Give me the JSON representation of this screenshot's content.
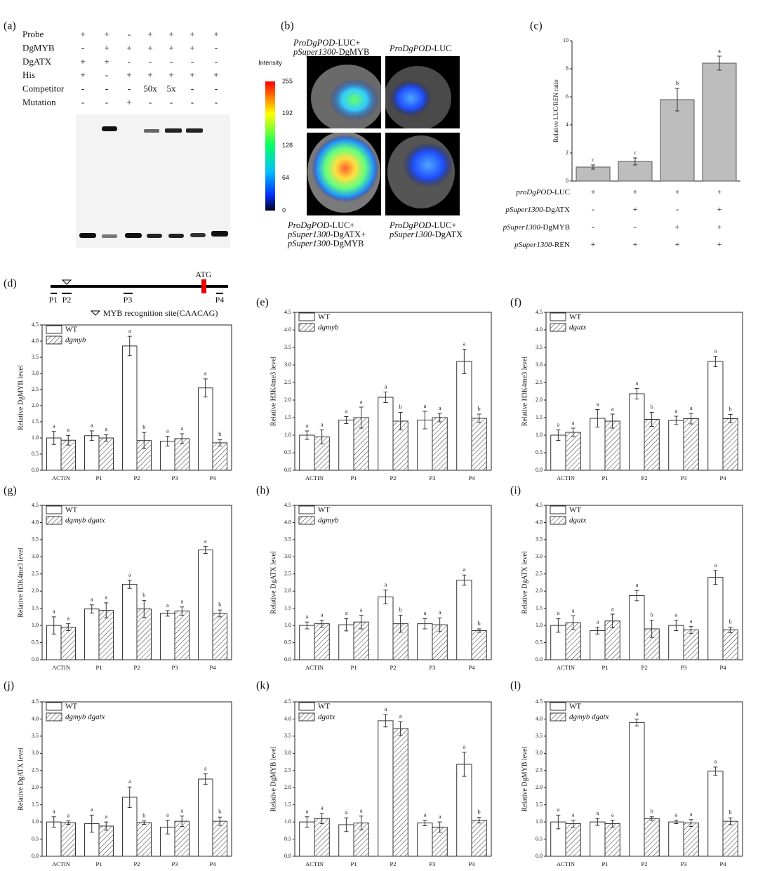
{
  "panel_a": {
    "label": "(a)",
    "rows": [
      {
        "name": "Probe",
        "lanes": [
          "+",
          "+",
          "-",
          "+",
          "+",
          "+",
          "+"
        ]
      },
      {
        "name": "DgMYB",
        "lanes": [
          "-",
          "+",
          "+",
          "+",
          "+",
          "+",
          "-"
        ]
      },
      {
        "name": "DgATX",
        "lanes": [
          "+",
          "+",
          "-",
          "-",
          "-",
          "-",
          "-"
        ]
      },
      {
        "name": "His",
        "lanes": [
          "+",
          "-",
          "+",
          "+",
          "+",
          "+",
          "+"
        ]
      },
      {
        "name": "Competitor",
        "lanes": [
          "-",
          "-",
          "-",
          "50x",
          "5x",
          "-",
          "-"
        ]
      },
      {
        "name": "Mutation",
        "lanes": [
          "-",
          "-",
          "+",
          "-",
          "-",
          "-",
          "-"
        ]
      }
    ]
  },
  "panel_b": {
    "label": "(b)",
    "captions": [
      [
        [
          "ProDgPOD",
          "-LUC+"
        ],
        [
          "pSuper1300",
          "-DgMYB"
        ]
      ],
      [
        [
          "ProDgPOD",
          "-LUC"
        ]
      ],
      [
        [
          "ProDgPOD",
          "-LUC+"
        ],
        [
          "pSuper1300",
          "-DgATX+"
        ],
        [
          "pSuper1300",
          "-DgMYB"
        ]
      ],
      [
        [
          "ProDgPOD",
          "-LUC+"
        ],
        [
          "pSuper1300",
          "-DgATX"
        ]
      ]
    ],
    "colorbar_title": "Intensity",
    "colorbar_lim": [
      0,
      255
    ],
    "colorbar_ticks": [
      255,
      192,
      128,
      64,
      0
    ]
  },
  "panel_d_map": {
    "start": "ATG",
    "primers": [
      "P1",
      "P2",
      "P3",
      "P4"
    ],
    "legend": "MYB recognition site(CAACAG)"
  },
  "chart_data": [
    {
      "type": "bar",
      "panel_label": "(c)",
      "y_label": "Relative LUC/REN ratio",
      "color": "#bdbdbd",
      "values": [
        1.0,
        1.4,
        5.8,
        8.4
      ],
      "errors": [
        0.15,
        0.25,
        0.8,
        0.5
      ],
      "letters": [
        "c",
        "c",
        "b",
        "a"
      ],
      "ylim": [
        0,
        10
      ],
      "yticks": [
        0,
        2,
        4,
        6,
        8,
        10
      ],
      "treatments": [
        {
          "label_parts": [
            "proDgPOD",
            "-LUC"
          ],
          "signs": [
            "+",
            "+",
            "+",
            "+"
          ]
        },
        {
          "label_parts": [
            "pSuper1300",
            "-DgATX"
          ],
          "signs": [
            "-",
            "+",
            "-",
            "+"
          ]
        },
        {
          "label_parts": [
            "pSuper1300",
            "-DgMYB"
          ],
          "signs": [
            "-",
            "-",
            "+",
            "+"
          ]
        },
        {
          "label_parts": [
            "pSuper1300",
            "-REN"
          ],
          "signs": [
            "+",
            "+",
            "+",
            "+"
          ]
        }
      ]
    },
    {
      "type": "grouped_bar",
      "panel_label": "(d)",
      "y_label": "Relative DgMYB level",
      "categories": [
        "ACTIN",
        "P1",
        "P2",
        "P3",
        "P4"
      ],
      "ylim": [
        0,
        4.5
      ],
      "yticks": [
        {
          "value": 0,
          "label": "0.0"
        },
        0.5,
        {
          "value": 1,
          "label": "1.0"
        },
        1.5,
        {
          "value": 2,
          "label": "2.0"
        },
        2.5,
        {
          "value": 3,
          "label": "3.0"
        },
        3.5,
        {
          "value": 4,
          "label": "4.0"
        },
        4.5
      ],
      "series": [
        {
          "name": "WT",
          "color": "#ffffff",
          "values": [
            1.0,
            1.07,
            3.85,
            0.9,
            2.55
          ],
          "errors": [
            0.2,
            0.15,
            0.3,
            0.15,
            0.28
          ],
          "letters": [
            "a",
            "a",
            "a",
            "a",
            "a"
          ]
        },
        {
          "name": "dgmyb",
          "color": "#ffffff",
          "hatch": true,
          "values": [
            0.93,
            1.0,
            0.92,
            0.98,
            0.85
          ],
          "errors": [
            0.15,
            0.1,
            0.25,
            0.15,
            0.1
          ],
          "letters": [
            "a",
            "a",
            "b",
            "a",
            "b"
          ]
        }
      ]
    },
    {
      "type": "grouped_bar",
      "panel_label": "(e)",
      "y_label": "Relative H3K4me3 level",
      "categories": [
        "ACTIN",
        "P1",
        "P2",
        "P3",
        "P4"
      ],
      "ylim": [
        0,
        4.5
      ],
      "yticks": [
        {
          "value": 0,
          "label": "0.0"
        },
        0.5,
        {
          "value": 1,
          "label": "1.0"
        },
        1.5,
        {
          "value": 2,
          "label": "2.0"
        },
        2.5,
        {
          "value": 3,
          "label": "3.0"
        },
        3.5,
        {
          "value": 4,
          "label": "4.0"
        },
        4.5
      ],
      "series": [
        {
          "name": "WT",
          "color": "#ffffff",
          "values": [
            1.0,
            1.43,
            2.08,
            1.43,
            3.1
          ],
          "errors": [
            0.12,
            0.1,
            0.15,
            0.25,
            0.35
          ],
          "letters": [
            "a",
            "a",
            "a",
            "a",
            "a"
          ]
        },
        {
          "name": "dgmyb",
          "color": "#ffffff",
          "hatch": true,
          "values": [
            0.95,
            1.5,
            1.4,
            1.5,
            1.48
          ],
          "errors": [
            0.2,
            0.3,
            0.25,
            0.12,
            0.12
          ],
          "letters": [
            "a",
            "a",
            "b",
            "a",
            "b"
          ]
        }
      ]
    },
    {
      "type": "grouped_bar",
      "panel_label": "(f)",
      "y_label": "Relative H3K4me3 level",
      "categories": [
        "ACTIN",
        "P1",
        "P2",
        "P3",
        "P4"
      ],
      "ylim": [
        0,
        4.5
      ],
      "yticks": [
        {
          "value": 0,
          "label": "0.0"
        },
        0.5,
        {
          "value": 1,
          "label": "1.0"
        },
        1.5,
        {
          "value": 2,
          "label": "2.0"
        },
        2.5,
        {
          "value": 3,
          "label": "3.0"
        },
        3.5,
        {
          "value": 4,
          "label": "4.0"
        },
        4.5
      ],
      "series": [
        {
          "name": "WT",
          "color": "#ffffff",
          "values": [
            1.0,
            1.48,
            2.18,
            1.42,
            3.1
          ],
          "errors": [
            0.15,
            0.25,
            0.15,
            0.12,
            0.15
          ],
          "letters": [
            "a",
            "a",
            "a",
            "a",
            "a"
          ]
        },
        {
          "name": "dgatx",
          "color": "#ffffff",
          "hatch": true,
          "values": [
            1.08,
            1.4,
            1.45,
            1.47,
            1.47
          ],
          "errors": [
            0.12,
            0.2,
            0.2,
            0.15,
            0.12
          ],
          "letters": [
            "a",
            "a",
            "b",
            "a",
            "b"
          ]
        }
      ]
    },
    {
      "type": "grouped_bar",
      "panel_label": "(g)",
      "y_label": "Relative H3K4me3 level",
      "categories": [
        "ACTIN",
        "P1",
        "P2",
        "P3",
        "P4"
      ],
      "ylim": [
        0,
        4.5
      ],
      "yticks": [
        {
          "value": 0,
          "label": "0.0"
        },
        0.5,
        {
          "value": 1,
          "label": "1.0"
        },
        1.5,
        {
          "value": 2,
          "label": "2.0"
        },
        2.5,
        {
          "value": 3,
          "label": "3.0"
        },
        3.5,
        {
          "value": 4,
          "label": "4.0"
        },
        4.5
      ],
      "series": [
        {
          "name": "WT",
          "color": "#ffffff",
          "values": [
            1.0,
            1.48,
            2.2,
            1.35,
            3.2
          ],
          "errors": [
            0.25,
            0.12,
            0.12,
            0.08,
            0.1
          ],
          "letters": [
            "a",
            "a",
            "a",
            "a",
            "a"
          ]
        },
        {
          "name": "dgmyb dgatx",
          "color": "#ffffff",
          "hatch": true,
          "values": [
            0.95,
            1.44,
            1.48,
            1.42,
            1.35
          ],
          "errors": [
            0.1,
            0.22,
            0.25,
            0.12,
            0.1
          ],
          "letters": [
            "a",
            "a",
            "b",
            "a",
            "b"
          ]
        }
      ]
    },
    {
      "type": "grouped_bar",
      "panel_label": "(h)",
      "y_label": "Relative DgATX level",
      "categories": [
        "ACTIN",
        "P1",
        "P2",
        "P3",
        "P4"
      ],
      "ylim": [
        0,
        4.5
      ],
      "yticks": [
        {
          "value": 0,
          "label": "0.0"
        },
        0.5,
        {
          "value": 1,
          "label": "1.0"
        },
        1.5,
        {
          "value": 2,
          "label": "2.0"
        },
        2.5,
        {
          "value": 3,
          "label": "3.0"
        },
        3.5,
        {
          "value": 4,
          "label": "4.0"
        },
        4.5
      ],
      "series": [
        {
          "name": "WT",
          "color": "#ffffff",
          "values": [
            1.0,
            1.02,
            1.83,
            1.05,
            2.32
          ],
          "errors": [
            0.1,
            0.18,
            0.2,
            0.15,
            0.15
          ],
          "letters": [
            "a",
            "a",
            "a",
            "a",
            "a"
          ]
        },
        {
          "name": "dgmyb",
          "color": "#ffffff",
          "hatch": true,
          "values": [
            1.05,
            1.1,
            1.05,
            1.02,
            0.85
          ],
          "errors": [
            0.1,
            0.2,
            0.25,
            0.2,
            0.05
          ],
          "letters": [
            "a",
            "a",
            "b",
            "a",
            "b"
          ]
        }
      ]
    },
    {
      "type": "grouped_bar",
      "panel_label": "(i)",
      "y_label": "Relative DgATX level",
      "categories": [
        "ACTIN",
        "P1",
        "P2",
        "P3",
        "P4"
      ],
      "ylim": [
        0,
        4.5
      ],
      "yticks": [
        {
          "value": 0,
          "label": "0.0"
        },
        0.5,
        {
          "value": 1,
          "label": "1.0"
        },
        1.5,
        {
          "value": 2,
          "label": "2.0"
        },
        2.5,
        {
          "value": 3,
          "label": "3.0"
        },
        3.5,
        {
          "value": 4,
          "label": "4.0"
        },
        4.5
      ],
      "series": [
        {
          "name": "WT",
          "color": "#ffffff",
          "values": [
            1.0,
            0.85,
            1.87,
            1.0,
            2.4
          ],
          "errors": [
            0.2,
            0.1,
            0.15,
            0.15,
            0.2
          ],
          "letters": [
            "a",
            "a",
            "a",
            "a",
            "a"
          ]
        },
        {
          "name": "dgatx",
          "color": "#ffffff",
          "hatch": true,
          "values": [
            1.08,
            1.13,
            0.9,
            0.87,
            0.87
          ],
          "errors": [
            0.2,
            0.2,
            0.25,
            0.1,
            0.08
          ],
          "letters": [
            "a",
            "a",
            "b",
            "a",
            "b"
          ]
        }
      ]
    },
    {
      "type": "grouped_bar",
      "panel_label": "(j)",
      "y_label": "Relative DgATX level",
      "categories": [
        "ACTIN",
        "P1",
        "P2",
        "P3",
        "P4"
      ],
      "ylim": [
        0,
        4.5
      ],
      "yticks": [
        {
          "value": 0,
          "label": "0.0"
        },
        0.5,
        {
          "value": 1,
          "label": "1.0"
        },
        1.5,
        {
          "value": 2,
          "label": "2.0"
        },
        2.5,
        {
          "value": 3,
          "label": "3.0"
        },
        3.5,
        {
          "value": 4,
          "label": "4.0"
        },
        4.5
      ],
      "series": [
        {
          "name": "WT",
          "color": "#ffffff",
          "values": [
            1.0,
            0.95,
            1.72,
            0.85,
            2.25
          ],
          "errors": [
            0.15,
            0.25,
            0.3,
            0.2,
            0.15
          ],
          "letters": [
            "a",
            "a",
            "a",
            "a",
            "a"
          ]
        },
        {
          "name": "dgmyb dgatx",
          "color": "#ffffff",
          "hatch": true,
          "values": [
            0.98,
            0.88,
            0.98,
            1.02,
            1.02
          ],
          "errors": [
            0.05,
            0.12,
            0.05,
            0.15,
            0.12
          ],
          "letters": [
            "a",
            "a",
            "b",
            "a",
            "b"
          ]
        }
      ]
    },
    {
      "type": "grouped_bar",
      "panel_label": "(k)",
      "y_label": "Relative DgMYB level",
      "categories": [
        "ACTIN",
        "P1",
        "P2",
        "P3",
        "P4"
      ],
      "ylim": [
        0,
        4.5
      ],
      "yticks": [
        {
          "value": 0,
          "label": "0.0"
        },
        0.5,
        {
          "value": 1,
          "label": "1.0"
        },
        1.5,
        {
          "value": 2,
          "label": "2.0"
        },
        2.5,
        {
          "value": 3,
          "label": "3.0"
        },
        3.5,
        {
          "value": 4,
          "label": "4.0"
        },
        4.5
      ],
      "series": [
        {
          "name": "WT",
          "color": "#ffffff",
          "values": [
            1.0,
            0.92,
            3.95,
            0.97,
            2.68
          ],
          "errors": [
            0.15,
            0.2,
            0.18,
            0.08,
            0.35
          ],
          "letters": [
            "a",
            "a",
            "a",
            "a",
            "a"
          ]
        },
        {
          "name": "dgatx",
          "color": "#ffffff",
          "hatch": true,
          "values": [
            1.1,
            0.97,
            3.72,
            0.85,
            1.05
          ],
          "errors": [
            0.15,
            0.2,
            0.2,
            0.15,
            0.08
          ],
          "letters": [
            "a",
            "a",
            "a",
            "a",
            "b"
          ]
        }
      ]
    },
    {
      "type": "grouped_bar",
      "panel_label": "(l)",
      "y_label": "Relative DgMYB level",
      "categories": [
        "ACTIN",
        "P1",
        "P2",
        "P3",
        "P4"
      ],
      "ylim": [
        0,
        4.5
      ],
      "yticks": [
        {
          "value": 0,
          "label": "0.0"
        },
        0.5,
        {
          "value": 1,
          "label": "1.0"
        },
        1.5,
        {
          "value": 2,
          "label": "2.0"
        },
        2.5,
        {
          "value": 3,
          "label": "3.0"
        },
        3.5,
        {
          "value": 4,
          "label": "4.0"
        },
        4.5
      ],
      "series": [
        {
          "name": "WT",
          "color": "#ffffff",
          "values": [
            1.0,
            1.0,
            3.9,
            1.0,
            2.48
          ],
          "errors": [
            0.2,
            0.1,
            0.1,
            0.05,
            0.12
          ],
          "letters": [
            "a",
            "a",
            "a",
            "a",
            "a"
          ]
        },
        {
          "name": "dgmyb dgatx",
          "color": "#ffffff",
          "hatch": true,
          "values": [
            0.95,
            0.95,
            1.1,
            0.97,
            1.02
          ],
          "errors": [
            0.1,
            0.1,
            0.05,
            0.1,
            0.1
          ],
          "letters": [
            "a",
            "a",
            "b",
            "a",
            "b"
          ]
        }
      ]
    }
  ]
}
